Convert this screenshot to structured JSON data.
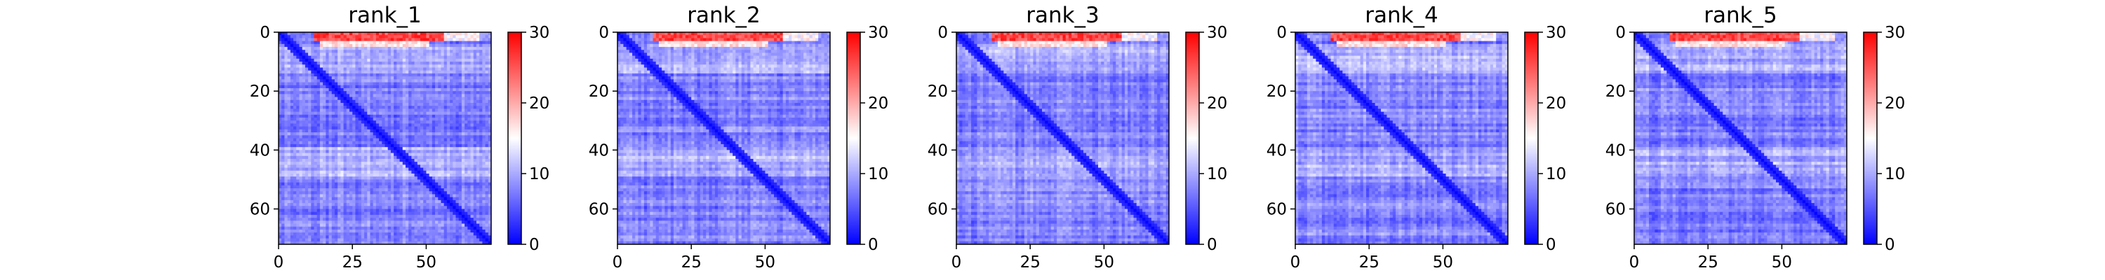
{
  "figure": {
    "description": "Predicted aligned error (PAE) heatmaps for 5 ranked models"
  },
  "chart_data": [
    {
      "type": "heatmap",
      "title": "rank_1",
      "xlim": [
        0,
        72
      ],
      "ylim": [
        72,
        0
      ],
      "xticks": [
        0,
        25,
        50
      ],
      "yticks": [
        0,
        20,
        40,
        60
      ],
      "colorbar": {
        "range": [
          0,
          30
        ],
        "ticks": [
          0,
          10,
          20,
          30
        ],
        "colormap": "bwr"
      },
      "n_residues": 72,
      "seed": 11
    },
    {
      "type": "heatmap",
      "title": "rank_2",
      "xlim": [
        0,
        72
      ],
      "ylim": [
        72,
        0
      ],
      "xticks": [
        0,
        25,
        50
      ],
      "yticks": [
        0,
        20,
        40,
        60
      ],
      "colorbar": {
        "range": [
          0,
          30
        ],
        "ticks": [
          0,
          10,
          20,
          30
        ],
        "colormap": "bwr"
      },
      "n_residues": 72,
      "seed": 23
    },
    {
      "type": "heatmap",
      "title": "rank_3",
      "xlim": [
        0,
        72
      ],
      "ylim": [
        72,
        0
      ],
      "xticks": [
        0,
        25,
        50
      ],
      "yticks": [
        0,
        20,
        40,
        60
      ],
      "colorbar": {
        "range": [
          0,
          30
        ],
        "ticks": [
          0,
          10,
          20,
          30
        ],
        "colormap": "bwr"
      },
      "n_residues": 72,
      "seed": 37
    },
    {
      "type": "heatmap",
      "title": "rank_4",
      "xlim": [
        0,
        72
      ],
      "ylim": [
        72,
        0
      ],
      "xticks": [
        0,
        25,
        50
      ],
      "yticks": [
        0,
        20,
        40,
        60
      ],
      "colorbar": {
        "range": [
          0,
          30
        ],
        "ticks": [
          0,
          10,
          20,
          30
        ],
        "colormap": "bwr"
      },
      "n_residues": 72,
      "seed": 41
    },
    {
      "type": "heatmap",
      "title": "rank_5",
      "xlim": [
        0,
        72
      ],
      "ylim": [
        72,
        0
      ],
      "xticks": [
        0,
        25,
        50
      ],
      "yticks": [
        0,
        20,
        40,
        60
      ],
      "colorbar": {
        "range": [
          0,
          30
        ],
        "ticks": [
          0,
          10,
          20,
          30
        ],
        "colormap": "bwr"
      },
      "n_residues": 72,
      "seed": 59
    }
  ],
  "colors": {
    "low": "#0000ff",
    "mid": "#ffffff",
    "high": "#ff0000",
    "axis": "#000000"
  }
}
